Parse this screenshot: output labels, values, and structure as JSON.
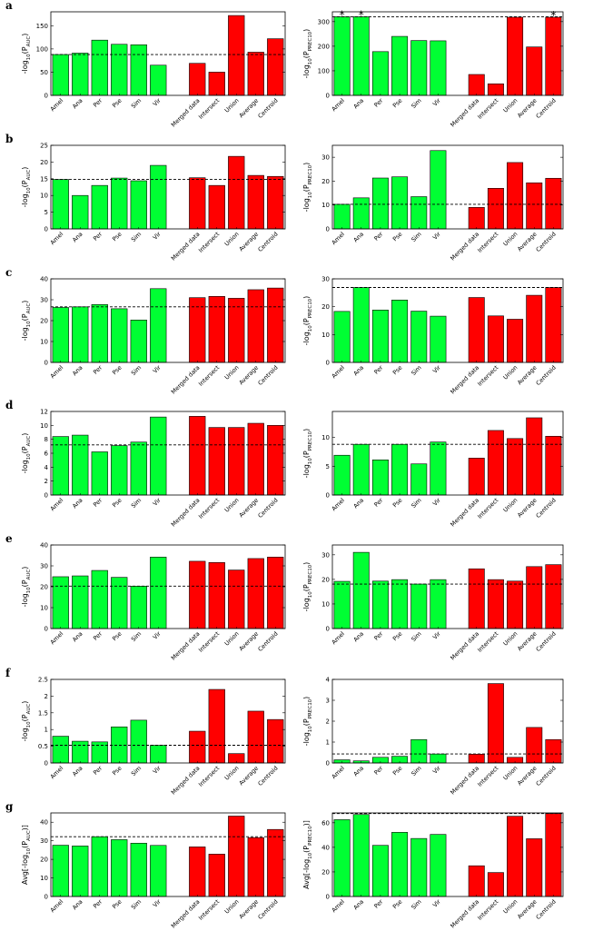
{
  "panel_letters": [
    "a",
    "b",
    "c",
    "d",
    "e",
    "f",
    "g"
  ],
  "colors": {
    "single": "#00ff33",
    "combined": "#ff0000",
    "edge": "#000000",
    "ref_line": "#000000"
  },
  "chart_data": [
    {
      "id": "a-auc",
      "type": "bar",
      "panel": "a",
      "ylabel_pre": "-log",
      "ylabel_sub": "10",
      "ylabel_mid": "(P",
      "ylabel_sub2": "AUC",
      "ylabel_post": ")",
      "categories": [
        "Amel",
        "Ana",
        "Per",
        "Pse",
        "Sim",
        "Vir",
        "Merged data",
        "Intersect",
        "Union",
        "Average",
        "Centroid"
      ],
      "values": [
        88,
        91,
        119,
        110,
        109,
        65,
        69,
        50,
        172,
        93,
        122
      ],
      "ylim": [
        0,
        180
      ],
      "yticks": [
        "0",
        "50",
        "100",
        "150"
      ],
      "ytick_values": [
        0,
        50,
        100,
        150
      ],
      "ref": 88,
      "stars": []
    },
    {
      "id": "a-prec",
      "type": "bar",
      "panel": "a",
      "ylabel_pre": "-log",
      "ylabel_sub": "10",
      "ylabel_mid": "(P",
      "ylabel_sub2": "PREC10",
      "ylabel_post": ")",
      "categories": [
        "Amel",
        "Ana",
        "Per",
        "Pse",
        "Sim",
        "Vir",
        "Merged data",
        "Intersect",
        "Union",
        "Average",
        "Centroid"
      ],
      "values": [
        320,
        320,
        178,
        240,
        223,
        222,
        85,
        47,
        318,
        197,
        318
      ],
      "ylim": [
        0,
        340
      ],
      "yticks": [
        "0",
        "100",
        "200",
        "300"
      ],
      "ytick_values": [
        0,
        100,
        200,
        300
      ],
      "ref": 320,
      "stars": [
        0,
        1,
        10
      ],
      "star_symbol": "*"
    },
    {
      "id": "b-auc",
      "type": "bar",
      "panel": "b",
      "ylabel_pre": "-log",
      "ylabel_sub": "10",
      "ylabel_mid": "(P",
      "ylabel_sub2": "AUC",
      "ylabel_post": ")",
      "categories": [
        "Amel",
        "Ana",
        "Per",
        "Pse",
        "Sim",
        "Vir",
        "Merged data",
        "Intersect",
        "Union",
        "Average",
        "Centroid"
      ],
      "values": [
        14.8,
        10,
        13,
        15.2,
        14.4,
        19,
        15.3,
        13,
        21.7,
        16,
        15.7
      ],
      "ylim": [
        0,
        25
      ],
      "yticks": [
        "0",
        "5",
        "10",
        "15",
        "20",
        "25"
      ],
      "ytick_values": [
        0,
        5,
        10,
        15,
        20,
        25
      ],
      "ref": 14.8,
      "stars": []
    },
    {
      "id": "b-prec",
      "type": "bar",
      "panel": "b",
      "ylabel_pre": "-log",
      "ylabel_sub": "10",
      "ylabel_mid": "(P",
      "ylabel_sub2": "PREC10",
      "ylabel_post": ")",
      "categories": [
        "Amel",
        "Ana",
        "Per",
        "Pse",
        "Sim",
        "Vir",
        "Merged data",
        "Intersect",
        "Union",
        "Average",
        "Centroid"
      ],
      "values": [
        10.3,
        13,
        21.3,
        21.8,
        13.5,
        32.8,
        9,
        17,
        27.8,
        19.3,
        21.2
      ],
      "ylim": [
        0,
        35
      ],
      "yticks": [
        "0",
        "10",
        "20",
        "30"
      ],
      "ytick_values": [
        0,
        10,
        20,
        30
      ],
      "ref": 10.3,
      "stars": []
    },
    {
      "id": "c-auc",
      "type": "bar",
      "panel": "c",
      "ylabel_pre": "-log",
      "ylabel_sub": "10",
      "ylabel_mid": "(P",
      "ylabel_sub2": "AUC",
      "ylabel_post": ")",
      "categories": [
        "Amel",
        "Ana",
        "Per",
        "Pse",
        "Sim",
        "Vir",
        "Merged data",
        "Intersect",
        "Union",
        "Average",
        "Centroid"
      ],
      "values": [
        26.3,
        26.6,
        27.7,
        25.7,
        20.3,
        35.3,
        31,
        31.6,
        30.7,
        34.8,
        35.6
      ],
      "ylim": [
        0,
        40
      ],
      "yticks": [
        "0",
        "10",
        "20",
        "30",
        "40"
      ],
      "ytick_values": [
        0,
        10,
        20,
        30,
        40
      ],
      "ref": 26.6,
      "stars": []
    },
    {
      "id": "c-prec",
      "type": "bar",
      "panel": "c",
      "ylabel_pre": "-log",
      "ylabel_sub": "10",
      "ylabel_mid": "(P",
      "ylabel_sub2": "PREC10",
      "ylabel_post": ")",
      "categories": [
        "Amel",
        "Ana",
        "Per",
        "Pse",
        "Sim",
        "Vir",
        "Merged data",
        "Intersect",
        "Union",
        "Average",
        "Centroid"
      ],
      "values": [
        18.3,
        26.9,
        18.8,
        22.4,
        18.4,
        16.6,
        23.3,
        16.7,
        15.5,
        24.1,
        26.9
      ],
      "ylim": [
        0,
        30
      ],
      "yticks": [
        "0",
        "10",
        "20",
        "30"
      ],
      "ytick_values": [
        0,
        10,
        20,
        30
      ],
      "ref": 26.9,
      "stars": []
    },
    {
      "id": "d-auc",
      "type": "bar",
      "panel": "d",
      "ylabel_pre": "-log",
      "ylabel_sub": "10",
      "ylabel_mid": "(P",
      "ylabel_sub2": "AUC",
      "ylabel_post": ")",
      "categories": [
        "Amel",
        "Ana",
        "Per",
        "Pse",
        "Sim",
        "Vir",
        "Merged data",
        "Intersect",
        "Union",
        "Average",
        "Centroid"
      ],
      "values": [
        8.4,
        8.6,
        6.2,
        7.1,
        7.6,
        11.2,
        11.3,
        9.7,
        9.7,
        10.3,
        10
      ],
      "ylim": [
        0,
        12
      ],
      "yticks": [
        "0",
        "2",
        "4",
        "6",
        "8",
        "10",
        "12"
      ],
      "ytick_values": [
        0,
        2,
        4,
        6,
        8,
        10,
        12
      ],
      "ref": 7.2,
      "stars": []
    },
    {
      "id": "d-prec",
      "type": "bar",
      "panel": "d",
      "ylabel_pre": "-log",
      "ylabel_sub": "10",
      "ylabel_mid": "(P",
      "ylabel_sub2": "PREC10",
      "ylabel_post": ")",
      "categories": [
        "Amel",
        "Ana",
        "Per",
        "Pse",
        "Sim",
        "Vir",
        "Merged data",
        "Intersect",
        "Union",
        "Average",
        "Centroid"
      ],
      "values": [
        6.9,
        8.8,
        6.1,
        8.8,
        5.4,
        9.2,
        6.4,
        11.2,
        9.8,
        13.4,
        10.2
      ],
      "ylim": [
        0,
        14.5
      ],
      "yticks": [
        "0",
        "5",
        "10"
      ],
      "ytick_values": [
        0,
        5,
        10
      ],
      "ref": 8.8,
      "stars": []
    },
    {
      "id": "e-auc",
      "type": "bar",
      "panel": "e",
      "ylabel_pre": "-log",
      "ylabel_sub": "10",
      "ylabel_mid": "(P",
      "ylabel_sub2": "AUC",
      "ylabel_post": ")",
      "categories": [
        "Amel",
        "Ana",
        "Per",
        "Pse",
        "Sim",
        "Vir",
        "Merged data",
        "Intersect",
        "Union",
        "Average",
        "Centroid"
      ],
      "values": [
        24.8,
        25.2,
        27.8,
        24.5,
        20.3,
        34.2,
        32.2,
        31.6,
        28,
        33.5,
        34.2
      ],
      "ylim": [
        0,
        40
      ],
      "yticks": [
        "0",
        "10",
        "20",
        "30",
        "40"
      ],
      "ytick_values": [
        0,
        10,
        20,
        30,
        40
      ],
      "ref": 20.3,
      "stars": []
    },
    {
      "id": "e-prec",
      "type": "bar",
      "panel": "e",
      "ylabel_pre": "-log",
      "ylabel_sub": "10",
      "ylabel_mid": "(P",
      "ylabel_sub2": "PREC10",
      "ylabel_post": ")",
      "categories": [
        "Amel",
        "Ana",
        "Per",
        "Pse",
        "Sim",
        "Vir",
        "Merged data",
        "Intersect",
        "Union",
        "Average",
        "Centroid"
      ],
      "values": [
        19.2,
        31,
        19.3,
        19.9,
        18.1,
        19.9,
        24.3,
        19.9,
        19.3,
        25.2,
        26
      ],
      "ylim": [
        0,
        34
      ],
      "yticks": [
        "0",
        "10",
        "20",
        "30"
      ],
      "ytick_values": [
        0,
        10,
        20,
        30
      ],
      "ref": 18.1,
      "stars": []
    },
    {
      "id": "f-auc",
      "type": "bar",
      "panel": "f",
      "ylabel_pre": "-log",
      "ylabel_sub": "10",
      "ylabel_mid": "(P",
      "ylabel_sub2": "AUC",
      "ylabel_post": ")",
      "categories": [
        "Amel",
        "Ana",
        "Per",
        "Pse",
        "Sim",
        "Vir",
        "Merged data",
        "Intersect",
        "Union",
        "Average",
        "Centroid"
      ],
      "values": [
        0.8,
        0.65,
        0.63,
        1.08,
        1.28,
        0.53,
        0.95,
        2.2,
        0.28,
        1.55,
        1.3
      ],
      "ylim": [
        0,
        2.5
      ],
      "yticks": [
        "0",
        "0.5",
        "1",
        "1.5",
        "2",
        "2.5"
      ],
      "ytick_values": [
        0,
        0.5,
        1,
        1.5,
        2,
        2.5
      ],
      "ref": 0.53,
      "stars": []
    },
    {
      "id": "f-prec",
      "type": "bar",
      "panel": "f",
      "ylabel_pre": "-log",
      "ylabel_sub": "10",
      "ylabel_mid": "(P",
      "ylabel_sub2": "PREC10",
      "ylabel_post": ")",
      "categories": [
        "Amel",
        "Ana",
        "Per",
        "Pse",
        "Sim",
        "Vir",
        "Merged data",
        "Intersect",
        "Union",
        "Average",
        "Centroid"
      ],
      "values": [
        0.15,
        0.1,
        0.27,
        0.32,
        1.12,
        0.43,
        0.42,
        3.8,
        0.27,
        1.7,
        1.12
      ],
      "ylim": [
        0,
        4
      ],
      "yticks": [
        "0",
        "1",
        "2",
        "3",
        "4"
      ],
      "ytick_values": [
        0,
        1,
        2,
        3,
        4
      ],
      "ref": 0.43,
      "stars": []
    },
    {
      "id": "g-auc",
      "type": "bar",
      "panel": "g",
      "ylabel_pre": "Avg[-log",
      "ylabel_sub": "10",
      "ylabel_mid": "(P",
      "ylabel_sub2": "AUC",
      "ylabel_post": ")]",
      "categories": [
        "Amel",
        "Ana",
        "Per",
        "Pse",
        "Sim",
        "Vir",
        "Merged data",
        "Intersect",
        "Union",
        "Average",
        "Centroid"
      ],
      "values": [
        27.6,
        27.2,
        32.2,
        30.6,
        28.7,
        27.5,
        26.7,
        22.8,
        43.3,
        31.7,
        36.1
      ],
      "ylim": [
        0,
        45
      ],
      "yticks": [
        "0",
        "10",
        "20",
        "30",
        "40"
      ],
      "ytick_values": [
        0,
        10,
        20,
        30,
        40
      ],
      "ref": 32.2,
      "stars": []
    },
    {
      "id": "g-prec",
      "type": "bar",
      "panel": "g",
      "ylabel_pre": "Avg[-log",
      "ylabel_sub": "10",
      "ylabel_mid": "(P",
      "ylabel_sub2": "PREC10",
      "ylabel_post": ")]",
      "categories": [
        "Amel",
        "Ana",
        "Per",
        "Pse",
        "Sim",
        "Vir",
        "Merged data",
        "Intersect",
        "Union",
        "Average",
        "Centroid"
      ],
      "values": [
        62.5,
        66.7,
        41.6,
        52.2,
        47.2,
        50.5,
        25,
        19.5,
        65.3,
        47,
        67.5
      ],
      "ylim": [
        0,
        68
      ],
      "yticks": [
        "0",
        "20",
        "40",
        "60"
      ],
      "ytick_values": [
        0,
        20,
        40,
        60
      ],
      "ref": 67.5,
      "stars": []
    }
  ]
}
